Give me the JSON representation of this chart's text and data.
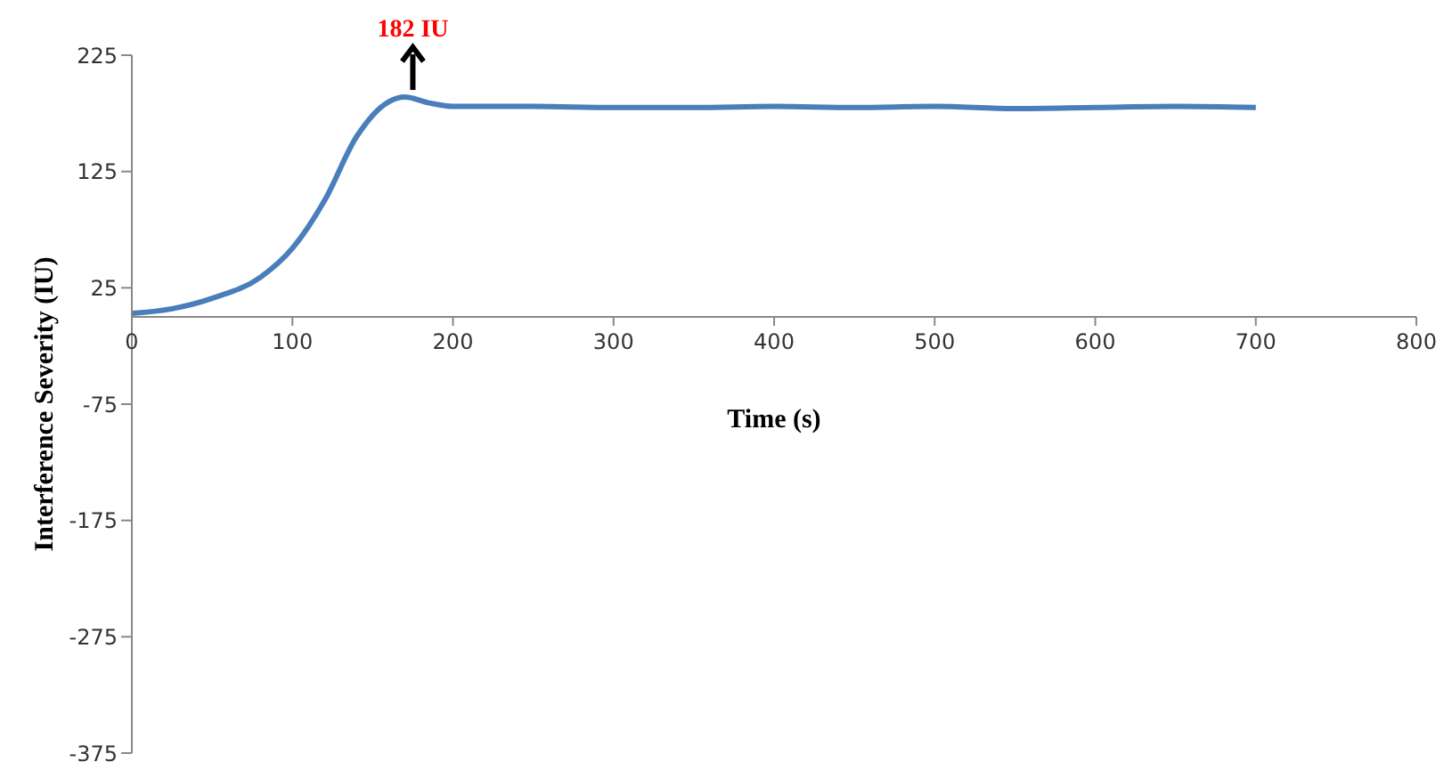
{
  "chart_data": {
    "type": "line",
    "xlabel": "Time (s)",
    "ylabel": "Interference Severity (IU)",
    "x": [
      0,
      25,
      50,
      80,
      100,
      120,
      140,
      160,
      170,
      185,
      200,
      250,
      300,
      350,
      400,
      450,
      500,
      550,
      600,
      650,
      700
    ],
    "series": [
      {
        "color": "#4a7ebb",
        "values": [
          3,
          7,
          16,
          34,
          59,
          100,
          155,
          185,
          189,
          184,
          181,
          181,
          180,
          180,
          181,
          180,
          181,
          179,
          180,
          181,
          180
        ]
      }
    ],
    "xlim": [
      0,
      800
    ],
    "xticks": [
      0,
      100,
      200,
      300,
      400,
      500,
      600,
      700,
      800
    ],
    "ylim": [
      -375,
      225
    ],
    "yticks": [
      -375,
      -275,
      -175,
      -75,
      25,
      125,
      225
    ],
    "annotations": [
      {
        "text": "182 IU",
        "x": 175,
        "y": 189
      }
    ],
    "grid": false,
    "legend": false,
    "marker": "none",
    "line_style": "solid"
  }
}
